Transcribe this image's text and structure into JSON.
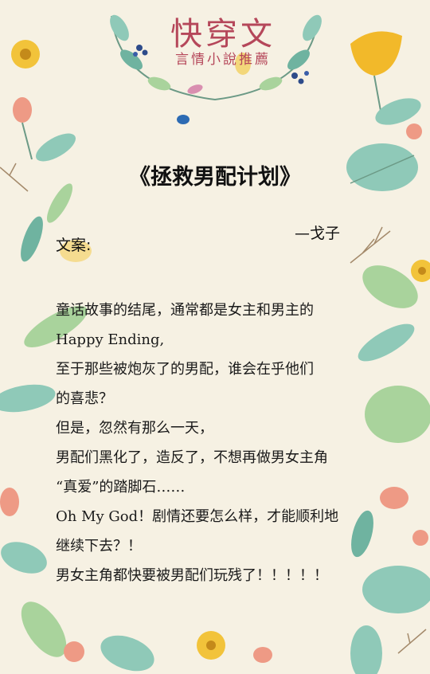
{
  "brand": {
    "title": "快穿文",
    "subtitle": "言情小說推薦"
  },
  "book": {
    "title": "《拯救男配计划》",
    "author": "—戈子"
  },
  "summary": {
    "label": "文案:",
    "lines": [
      "童话故事的结尾，通常都是女主和男主的",
      "Happy Ending,",
      "至于那些被炮灰了的男配，谁会在乎他们",
      "的喜悲？",
      "但是，忽然有那么一天，",
      "男配们黑化了，造反了，不想再做男女主角",
      "“真爱”的踏脚石……",
      "Oh My God！剧情还要怎么样，才能顺利地",
      "继续下去？！",
      "男女主角都快要被男配们玩残了！！！！！"
    ]
  },
  "colors": {
    "background": "#f6f1e3",
    "brand": "#b5475a",
    "leaf_teal": "#8fc9b8",
    "leaf_green": "#a9d39c",
    "flower_yellow": "#f2c33a",
    "flower_pink": "#ee9a85"
  }
}
